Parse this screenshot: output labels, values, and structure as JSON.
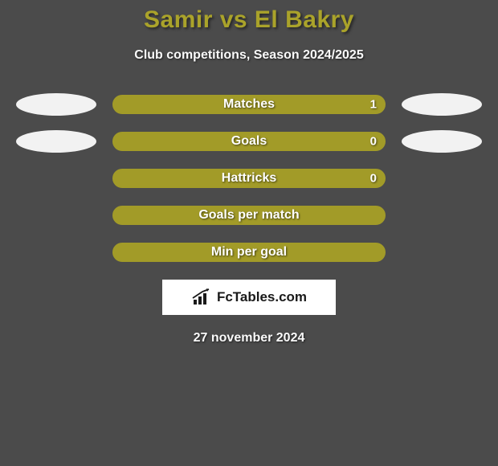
{
  "title": "Samir vs El Bakry",
  "subtitle": "Club competitions, Season 2024/2025",
  "bar_bg": "#a29b28",
  "bar_border": "#a29b28",
  "background": "#4b4b4b",
  "oval_color": "#f2f2f2",
  "stats": [
    {
      "label": "Matches",
      "value": "1",
      "fill_pct": 92,
      "show_value": true,
      "show_left_oval": true,
      "show_right_oval": true
    },
    {
      "label": "Goals",
      "value": "0",
      "fill_pct": 92,
      "show_value": true,
      "show_left_oval": true,
      "show_right_oval": true
    },
    {
      "label": "Hattricks",
      "value": "0",
      "fill_pct": 100,
      "show_value": true,
      "show_left_oval": false,
      "show_right_oval": false
    },
    {
      "label": "Goals per match",
      "value": "",
      "fill_pct": 100,
      "show_value": false,
      "show_left_oval": false,
      "show_right_oval": false
    },
    {
      "label": "Min per goal",
      "value": "",
      "fill_pct": 100,
      "show_value": false,
      "show_left_oval": false,
      "show_right_oval": false
    }
  ],
  "brand": "FcTables.com",
  "date": "27 november 2024",
  "text_shadow_color": "rgba(0,0,0,0.6)"
}
